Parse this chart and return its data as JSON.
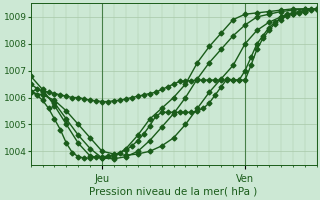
{
  "xlabel": "Pression niveau de la mer( hPa )",
  "ylim": [
    1003.5,
    1009.5
  ],
  "xlim": [
    0,
    48
  ],
  "yticks": [
    1004,
    1005,
    1006,
    1007,
    1008,
    1009
  ],
  "day_ticks": [
    {
      "label": "Jeu",
      "x": 12
    },
    {
      "label": "Ven",
      "x": 36
    }
  ],
  "bg_color": "#cce8d4",
  "line_color": "#1a5c1a",
  "grid_color": "#a8c8a8",
  "series": [
    {
      "x": [
        0,
        1,
        2,
        3,
        4,
        5,
        6,
        7,
        8,
        9,
        10,
        11,
        12,
        13,
        14,
        15,
        16,
        17,
        18,
        19,
        20,
        21,
        22,
        23,
        24,
        25,
        26,
        27,
        28,
        29,
        30,
        31,
        32,
        33,
        34,
        35,
        36,
        37,
        38,
        39,
        40,
        41,
        42,
        43,
        44,
        45,
        46,
        47,
        48
      ],
      "y": [
        1006.2,
        1006.3,
        1006.25,
        1006.2,
        1006.15,
        1006.1,
        1006.05,
        1006.0,
        1006.0,
        1005.95,
        1005.9,
        1005.88,
        1005.85,
        1005.85,
        1005.88,
        1005.9,
        1005.95,
        1006.0,
        1006.05,
        1006.1,
        1006.15,
        1006.2,
        1006.3,
        1006.4,
        1006.5,
        1006.6,
        1006.62,
        1006.63,
        1006.65,
        1006.65,
        1006.65,
        1006.65,
        1006.65,
        1006.65,
        1006.65,
        1006.65,
        1007.0,
        1007.5,
        1008.0,
        1008.3,
        1008.6,
        1008.8,
        1008.9,
        1009.05,
        1009.1,
        1009.15,
        1009.2,
        1009.25,
        1009.3
      ]
    },
    {
      "x": [
        0,
        2,
        4,
        6,
        8,
        10,
        12,
        14,
        16,
        18,
        20,
        22,
        24,
        26,
        28,
        30,
        32,
        34,
        36,
        38,
        40,
        42,
        44,
        46,
        48
      ],
      "y": [
        1006.2,
        1006.1,
        1005.9,
        1005.5,
        1005.0,
        1004.5,
        1004.0,
        1003.9,
        1003.85,
        1003.9,
        1004.0,
        1004.2,
        1004.5,
        1005.0,
        1005.6,
        1006.2,
        1006.7,
        1007.2,
        1008.0,
        1008.5,
        1008.8,
        1009.0,
        1009.1,
        1009.2,
        1009.3
      ]
    },
    {
      "x": [
        0,
        2,
        4,
        6,
        8,
        10,
        12,
        14,
        16,
        18,
        20,
        22,
        24,
        26,
        28,
        30,
        32,
        34,
        36,
        38,
        40,
        42,
        44,
        46,
        48
      ],
      "y": [
        1006.5,
        1006.2,
        1005.8,
        1005.2,
        1004.6,
        1004.1,
        1003.75,
        1003.72,
        1003.8,
        1004.0,
        1004.4,
        1004.9,
        1005.4,
        1006.0,
        1006.7,
        1007.3,
        1007.8,
        1008.3,
        1008.7,
        1009.0,
        1009.1,
        1009.2,
        1009.25,
        1009.3,
        1009.3
      ]
    },
    {
      "x": [
        0,
        2,
        4,
        6,
        8,
        10,
        12,
        14,
        16,
        18,
        20,
        22,
        24,
        26,
        28,
        30,
        32,
        34,
        36,
        38,
        40,
        42,
        44,
        46,
        48
      ],
      "y": [
        1006.8,
        1006.3,
        1005.7,
        1005.0,
        1004.3,
        1003.82,
        1003.75,
        1003.8,
        1004.1,
        1004.6,
        1005.2,
        1005.6,
        1006.0,
        1006.5,
        1007.3,
        1007.9,
        1008.4,
        1008.9,
        1009.1,
        1009.15,
        1009.2,
        1009.25,
        1009.3,
        1009.3,
        1009.3
      ]
    },
    {
      "x": [
        0,
        1,
        2,
        3,
        4,
        5,
        6,
        7,
        8,
        9,
        10,
        11,
        12,
        13,
        14,
        15,
        16,
        17,
        18,
        19,
        20,
        21,
        22,
        23,
        24,
        25,
        26,
        27,
        28,
        29,
        30,
        31,
        32,
        33,
        34,
        35,
        36,
        37,
        38,
        39,
        40,
        41,
        42,
        43,
        44,
        45,
        46,
        47,
        48
      ],
      "y": [
        1006.2,
        1006.1,
        1005.9,
        1005.6,
        1005.2,
        1004.8,
        1004.3,
        1003.95,
        1003.8,
        1003.75,
        1003.75,
        1003.78,
        1003.8,
        1003.82,
        1003.88,
        1003.95,
        1004.05,
        1004.2,
        1004.4,
        1004.65,
        1004.95,
        1005.3,
        1005.45,
        1005.45,
        1005.45,
        1005.45,
        1005.45,
        1005.45,
        1005.5,
        1005.6,
        1005.8,
        1006.1,
        1006.4,
        1006.7,
        1006.65,
        1006.65,
        1006.65,
        1007.2,
        1007.8,
        1008.2,
        1008.5,
        1008.75,
        1009.0,
        1009.1,
        1009.15,
        1009.2,
        1009.25,
        1009.3,
        1009.3
      ]
    }
  ],
  "marker": "D",
  "marker_size": 2.5,
  "line_width": 1.0
}
